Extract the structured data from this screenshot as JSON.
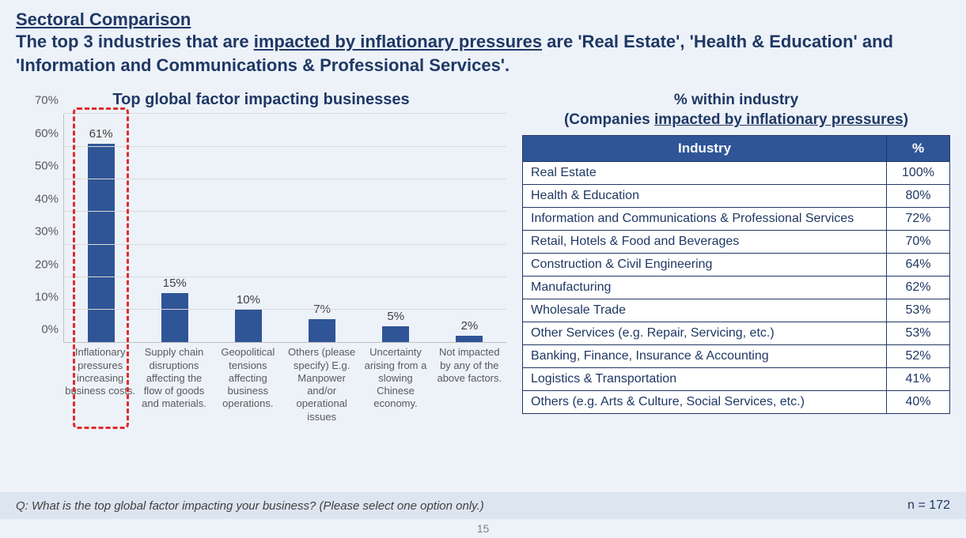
{
  "heading": {
    "title": "Sectoral Comparison",
    "subtitle_pre": "The top 3 industries that are ",
    "subtitle_underlined": "impacted by inflationary pressures",
    "subtitle_post": " are 'Real Estate', 'Health & Education' and 'Information and Communications & Professional Services'."
  },
  "chart": {
    "type": "bar",
    "title": "Top global factor impacting businesses",
    "y_ticks": [
      "0%",
      "10%",
      "20%",
      "30%",
      "40%",
      "50%",
      "60%",
      "70%"
    ],
    "y_max": 70,
    "bar_color": "#2f5597",
    "grid_color": "#d9d9d9",
    "highlight_color": "#e02b2b",
    "bars": [
      {
        "label": "Inflationary pressures increasing business costs.",
        "value": 61,
        "value_label": "61%",
        "highlight": true
      },
      {
        "label": "Supply chain disruptions affecting the flow of goods and materials.",
        "value": 15,
        "value_label": "15%"
      },
      {
        "label": "Geopolitical tensions affecting business operations.",
        "value": 10,
        "value_label": "10%"
      },
      {
        "label": "Others (please specify) E.g. Manpower and/or operational issues",
        "value": 7,
        "value_label": "7%"
      },
      {
        "label": "Uncertainty arising from a slowing Chinese economy.",
        "value": 5,
        "value_label": "5%"
      },
      {
        "label": "Not impacted by any of the above factors.",
        "value": 2,
        "value_label": "2%"
      }
    ]
  },
  "table": {
    "title_line1": "% within industry",
    "title_line2_pre": "(Companies ",
    "title_line2_underlined": "impacted by inflationary pressures",
    "title_line2_post": ")",
    "header_industry": "Industry",
    "header_pct": "%",
    "rows": [
      {
        "industry": "Real Estate",
        "pct": "100%"
      },
      {
        "industry": "Health & Education",
        "pct": "80%"
      },
      {
        "industry": "Information and Communications & Professional Services",
        "pct": "72%"
      },
      {
        "industry": "Retail, Hotels & Food and Beverages",
        "pct": "70%"
      },
      {
        "industry": "Construction & Civil Engineering",
        "pct": "64%"
      },
      {
        "industry": "Manufacturing",
        "pct": "62%"
      },
      {
        "industry": "Wholesale Trade",
        "pct": "53%"
      },
      {
        "industry": "Other Services (e.g. Repair, Servicing, etc.)",
        "pct": "53%"
      },
      {
        "industry": "Banking, Finance, Insurance & Accounting",
        "pct": "52%"
      },
      {
        "industry": "Logistics & Transportation",
        "pct": "41%"
      },
      {
        "industry": "Others (e.g. Arts & Culture, Social Services, etc.)",
        "pct": "40%"
      }
    ]
  },
  "footer": {
    "question": "Q: What is the top global factor impacting your business? (Please select one option only.)",
    "n": "n = 172",
    "page": "15"
  }
}
